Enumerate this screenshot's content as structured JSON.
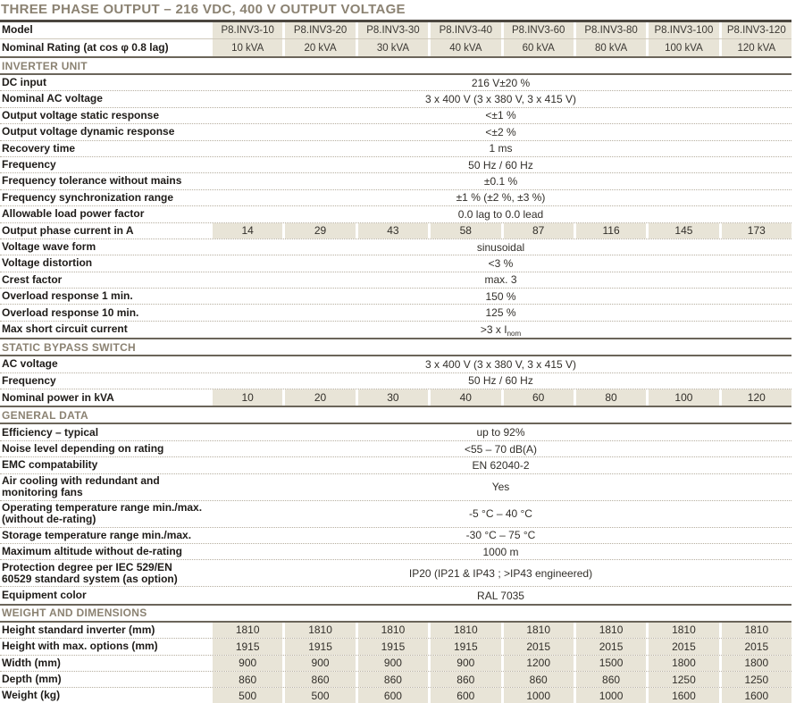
{
  "title": "THREE PHASE OUTPUT – 216 VDC, 400 V OUTPUT VOLTAGE",
  "header": {
    "model_label": "Model",
    "models": [
      "P8.INV3-10",
      "P8.INV3-20",
      "P8.INV3-30",
      "P8.INV3-40",
      "P8.INV3-60",
      "P8.INV3-80",
      "P8.INV3-100",
      "P8.INV3-120"
    ],
    "rating_label": "Nominal Rating (at cos φ 0.8 lag)",
    "ratings": [
      "10 kVA",
      "20 kVA",
      "30 kVA",
      "40 kVA",
      "60 kVA",
      "80 kVA",
      "100 kVA",
      "120 kVA"
    ]
  },
  "sections": [
    {
      "title": "INVERTER UNIT",
      "rows": [
        {
          "label": "DC input",
          "value": "216 V±20 %"
        },
        {
          "label": "Nominal AC voltage",
          "value": "3 x 400 V (3 x 380 V, 3 x 415 V)"
        },
        {
          "label": "Output voltage static response",
          "value": "<±1 %"
        },
        {
          "label": "Output voltage dynamic response",
          "value": "<±2 %"
        },
        {
          "label": "Recovery time",
          "value": "1 ms"
        },
        {
          "label": "Frequency",
          "value": "50 Hz / 60 Hz"
        },
        {
          "label": "Frequency tolerance without mains",
          "value": "±0.1 %"
        },
        {
          "label": "Frequency synchronization range",
          "value": "±1 % (±2 %, ±3 %)"
        },
        {
          "label": "Allowable load power factor",
          "value": "0.0 lag to 0.0 lead"
        },
        {
          "label": "Output phase current in A",
          "values": [
            "14",
            "29",
            "43",
            "58",
            "87",
            "116",
            "145",
            "173"
          ]
        },
        {
          "label": "Voltage wave form",
          "value": "sinusoidal"
        },
        {
          "label": "Voltage distortion",
          "value": "<3 %"
        },
        {
          "label": "Crest factor",
          "value": "max. 3"
        },
        {
          "label": "Overload response 1 min.",
          "value": "150 %"
        },
        {
          "label": "Overload response 10 min.",
          "value": "125 %"
        },
        {
          "label": "Max short circuit current",
          "value": ">3 x I",
          "value_sub": "nom"
        }
      ]
    },
    {
      "title": "STATIC BYPASS SWITCH",
      "rows": [
        {
          "label": "AC voltage",
          "value": "3 x 400 V (3 x 380 V, 3 x 415 V)"
        },
        {
          "label": "Frequency",
          "value": "50 Hz / 60 Hz"
        },
        {
          "label": "Nominal power in kVA",
          "values": [
            "10",
            "20",
            "30",
            "40",
            "60",
            "80",
            "100",
            "120"
          ]
        }
      ]
    },
    {
      "title": "GENERAL DATA",
      "rows": [
        {
          "label": "Efficiency – typical",
          "value": "up to 92%"
        },
        {
          "label": "Noise level depending on rating",
          "value": "<55 – 70 dB(A)"
        },
        {
          "label": "EMC compatability",
          "value": "EN 62040-2"
        },
        {
          "label": "Air cooling with redundant and monitoring fans",
          "value": "Yes",
          "tall": true
        },
        {
          "label": "Operating temperature range min./max. (without de-rating)",
          "value": "-5 °C – 40 °C",
          "tall": true
        },
        {
          "label": "Storage temperature range min./max.",
          "value": "-30 °C – 75 °C"
        },
        {
          "label": "Maximum altitude without de-rating",
          "value": "1000 m"
        },
        {
          "label": "Protection degree per IEC 529/EN 60529 standard system (as option)",
          "value": "IP20 (IP21 & IP43 ; >IP43 engineered)",
          "tall": true
        },
        {
          "label": "Equipment color",
          "value": "RAL 7035"
        }
      ]
    },
    {
      "title": "WEIGHT AND DIMENSIONS",
      "rows": [
        {
          "label": "Height standard inverter (mm)",
          "values": [
            "1810",
            "1810",
            "1810",
            "1810",
            "1810",
            "1810",
            "1810",
            "1810"
          ]
        },
        {
          "label": "Height with max. options (mm)",
          "values": [
            "1915",
            "1915",
            "1915",
            "1915",
            "2015",
            "2015",
            "2015",
            "2015"
          ]
        },
        {
          "label": "Width (mm)",
          "values": [
            "900",
            "900",
            "900",
            "900",
            "1200",
            "1500",
            "1800",
            "1800"
          ]
        },
        {
          "label": "Depth (mm)",
          "values": [
            "860",
            "860",
            "860",
            "860",
            "860",
            "860",
            "1250",
            "1250"
          ]
        },
        {
          "label": "Weight (kg)",
          "values": [
            "500",
            "500",
            "600",
            "600",
            "1000",
            "1000",
            "1600",
            "1600"
          ]
        }
      ]
    }
  ],
  "colors": {
    "accent_text": "#8b8272",
    "title_rule": "#4b463f",
    "section_rule": "#6b655a",
    "cell_beige": "#e8e4d7",
    "row_dotted_line": "#b6ae9f",
    "label_text": "#1e1b18",
    "value_text": "#322f2a"
  }
}
